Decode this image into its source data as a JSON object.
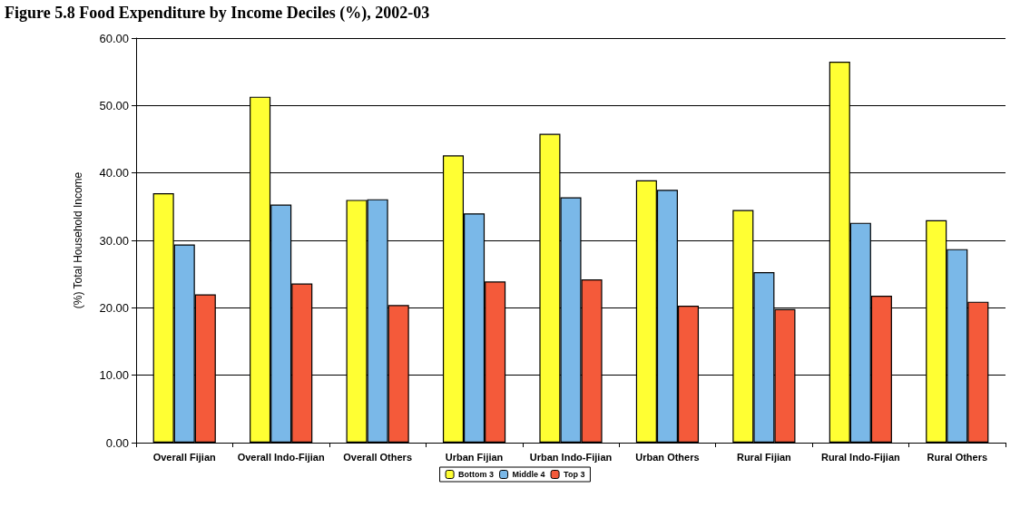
{
  "chart_data": {
    "type": "bar",
    "title": "Figure 5.8 Food Expenditure by Income Deciles (%), 2002-03",
    "ylabel": "(%) Total Household Income",
    "categories": [
      "Overall Fijian",
      "Overall Indo-Fijian",
      "Overall Others",
      "Urban Fijian",
      "Urban Indo-Fijian",
      "Urban Others",
      "Rural Fijian",
      "Rural Indo-Fijian",
      "Rural Others"
    ],
    "series": [
      {
        "name": "Bottom 3",
        "color": "#ffff33",
        "values": [
          37.0,
          51.3,
          36.0,
          42.6,
          45.8,
          38.9,
          34.5,
          56.5,
          33.0
        ]
      },
      {
        "name": "Middle 4",
        "color": "#7ab8e8",
        "values": [
          29.4,
          35.3,
          36.1,
          34.0,
          36.4,
          37.5,
          25.3,
          32.6,
          28.7
        ]
      },
      {
        "name": "Top 3",
        "color": "#f45a3a",
        "values": [
          22.0,
          23.6,
          20.4,
          23.9,
          24.2,
          20.3,
          19.8,
          21.8,
          20.9
        ]
      }
    ],
    "ylim": [
      0,
      60
    ],
    "yticks": [
      {
        "value": 0,
        "label": "0.00"
      },
      {
        "value": 10,
        "label": "10.00"
      },
      {
        "value": 20,
        "label": "20.00"
      },
      {
        "value": 30,
        "label": "30.00"
      },
      {
        "value": 40,
        "label": "40.00"
      },
      {
        "value": 50,
        "label": "50.00"
      },
      {
        "value": 60,
        "label": "60.00"
      }
    ],
    "grid": "y",
    "legend": "bottom"
  }
}
